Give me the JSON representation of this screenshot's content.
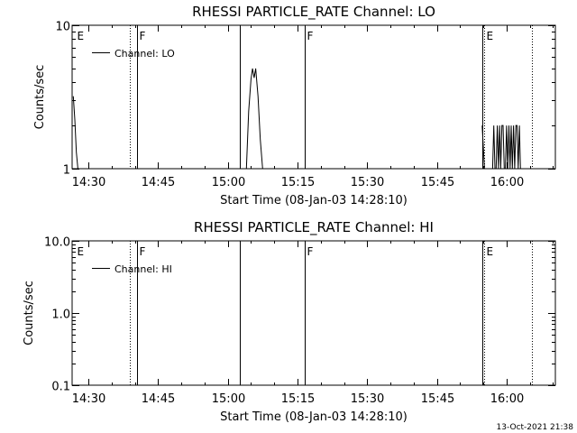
{
  "chart_data": [
    {
      "type": "line",
      "title": "RHESSI PARTICLE_RATE Channel: LO",
      "xlabel": "Start Time (08-Jan-03 14:28:10)",
      "ylabel": "Counts/sec",
      "yscale": "log",
      "ylim": [
        1,
        10
      ],
      "yticks": [
        {
          "v": 1,
          "label": "1"
        },
        {
          "v": 10,
          "label": "10"
        }
      ],
      "xlim": [
        "14:26:30",
        "16:10:30"
      ],
      "xticks": [
        "14:30",
        "14:45",
        "15:00",
        "15:15",
        "15:30",
        "15:45",
        "16:00"
      ],
      "grid": false,
      "legend": {
        "position": "top-left",
        "entries": [
          "Channel: LO"
        ]
      },
      "flags": [
        {
          "time": "14:27:00",
          "label": "E",
          "style": "none"
        },
        {
          "time": "14:39:00",
          "label": "",
          "style": "dotted"
        },
        {
          "time": "14:40:30",
          "label": "F",
          "style": "solid"
        },
        {
          "time": "15:02:30",
          "label": "",
          "style": "solid"
        },
        {
          "time": "15:16:30",
          "label": "F",
          "style": "solid"
        },
        {
          "time": "15:54:45",
          "label": "",
          "style": "solid"
        },
        {
          "time": "15:55:15",
          "label": "E",
          "style": "dotted"
        },
        {
          "time": "16:05:30",
          "label": "",
          "style": "dotted"
        }
      ],
      "series": [
        {
          "name": "Channel: LO",
          "segments": [
            {
              "x": [
                "14:26:45",
                "14:27:05",
                "14:27:25",
                "14:27:45",
                "14:28:00"
              ],
              "y": [
                3.2,
                2.2,
                1.3,
                1.0,
                1.0
              ]
            },
            {
              "x": [
                "15:04:00",
                "15:04:30",
                "15:05:00",
                "15:05:20",
                "15:05:40",
                "15:06:00",
                "15:06:30",
                "15:07:00",
                "15:07:30"
              ],
              "y": [
                1.0,
                2.5,
                4.2,
                5.0,
                4.3,
                5.0,
                3.2,
                1.6,
                1.0
              ]
            },
            {
              "x": [
                "15:54:45",
                "15:55:15",
                "15:55:45"
              ],
              "y": [
                2.0,
                1.0,
                1.0
              ]
            },
            {
              "x": [
                "15:57:00",
                "15:57:15",
                "15:57:30",
                "15:57:45",
                "15:58:00",
                "15:58:15",
                "15:58:30",
                "15:58:45",
                "15:59:00",
                "15:59:15",
                "15:59:30",
                "15:59:45",
                "16:00:00",
                "16:00:15",
                "16:00:30",
                "16:00:45",
                "16:01:00",
                "16:01:15",
                "16:01:30",
                "16:01:45",
                "16:02:00",
                "16:02:15",
                "16:02:30",
                "16:02:45",
                "16:03:00"
              ],
              "y": [
                1.0,
                2.0,
                1.0,
                1.0,
                2.0,
                1.0,
                2.0,
                1.0,
                2.0,
                2.0,
                1.0,
                1.0,
                2.0,
                1.0,
                2.0,
                1.0,
                2.0,
                1.0,
                2.0,
                1.0,
                2.0,
                2.0,
                1.0,
                2.0,
                1.0
              ]
            }
          ]
        }
      ]
    },
    {
      "type": "line",
      "title": "RHESSI PARTICLE_RATE Channel: HI",
      "xlabel": "Start Time (08-Jan-03 14:28:10)",
      "ylabel": "Counts/sec",
      "yscale": "log",
      "ylim": [
        0.1,
        10
      ],
      "yticks": [
        {
          "v": 0.1,
          "label": "0.1"
        },
        {
          "v": 1,
          "label": "1.0"
        },
        {
          "v": 10,
          "label": "10.0"
        }
      ],
      "xlim": [
        "14:26:30",
        "16:10:30"
      ],
      "xticks": [
        "14:30",
        "14:45",
        "15:00",
        "15:15",
        "15:30",
        "15:45",
        "16:00"
      ],
      "grid": false,
      "legend": {
        "position": "top-left",
        "entries": [
          "Channel: HI"
        ]
      },
      "flags": [
        {
          "time": "14:27:00",
          "label": "E",
          "style": "none"
        },
        {
          "time": "14:39:00",
          "label": "",
          "style": "dotted"
        },
        {
          "time": "14:40:30",
          "label": "F",
          "style": "solid"
        },
        {
          "time": "15:02:30",
          "label": "",
          "style": "solid"
        },
        {
          "time": "15:16:30",
          "label": "F",
          "style": "solid"
        },
        {
          "time": "15:54:45",
          "label": "",
          "style": "solid"
        },
        {
          "time": "15:55:15",
          "label": "E",
          "style": "dotted"
        },
        {
          "time": "16:05:30",
          "label": "",
          "style": "dotted"
        }
      ],
      "series": [
        {
          "name": "Channel: HI",
          "segments": []
        }
      ]
    }
  ],
  "footer": {
    "timestamp": "13-Oct-2021 21:38"
  }
}
